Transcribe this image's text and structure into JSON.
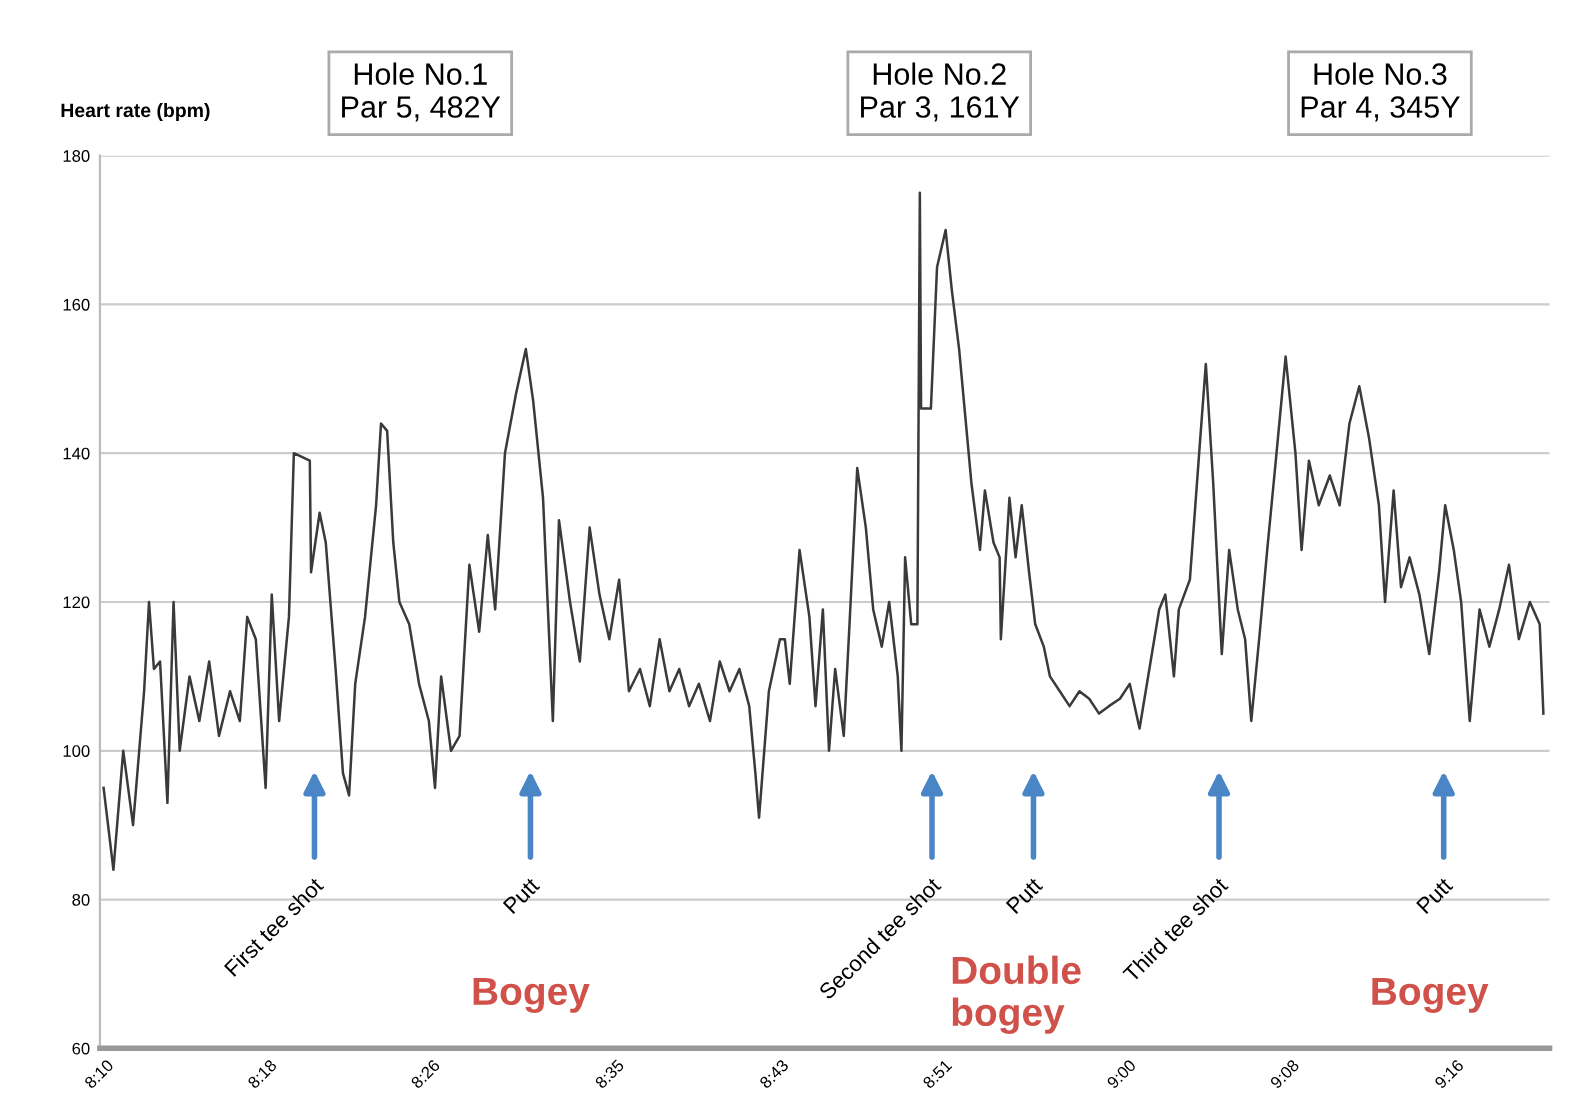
{
  "chart_data": {
    "type": "line",
    "ylabel": "Heart rate (bpm)",
    "xlim": [
      8.167,
      9.348
    ],
    "ylim": [
      60,
      180
    ],
    "yticks": [
      60,
      80,
      100,
      120,
      140,
      160,
      180
    ],
    "xticks": [
      {
        "value": 8.167,
        "label": "8:10"
      },
      {
        "value": 8.3,
        "label": "8:18"
      },
      {
        "value": 8.433,
        "label": "8:26"
      },
      {
        "value": 8.583,
        "label": "8:35"
      },
      {
        "value": 8.717,
        "label": "8:43"
      },
      {
        "value": 8.85,
        "label": "8:51"
      },
      {
        "value": 9.0,
        "label": "9:00"
      },
      {
        "value": 9.133,
        "label": "9:08"
      },
      {
        "value": 9.267,
        "label": "9:16"
      }
    ],
    "grid": "y",
    "marker": "none",
    "line_style": "solid",
    "series": [
      {
        "color": "#3a3a3a",
        "x": [
          8.17,
          8.178,
          8.186,
          8.194,
          8.203,
          8.207,
          8.211,
          8.216,
          8.222,
          8.227,
          8.232,
          8.24,
          8.248,
          8.256,
          8.264,
          8.273,
          8.281,
          8.287,
          8.294,
          8.302,
          8.307,
          8.313,
          8.321,
          8.325,
          8.338,
          8.339,
          8.346,
          8.351,
          8.359,
          8.365,
          8.37,
          8.375,
          8.383,
          8.392,
          8.396,
          8.401,
          8.406,
          8.411,
          8.419,
          8.427,
          8.435,
          8.44,
          8.445,
          8.453,
          8.46,
          8.468,
          8.476,
          8.483,
          8.489,
          8.497,
          8.506,
          8.514,
          8.52,
          8.528,
          8.536,
          8.541,
          8.55,
          8.558,
          8.566,
          8.574,
          8.582,
          8.59,
          8.598,
          8.607,
          8.615,
          8.623,
          8.631,
          8.639,
          8.647,
          8.655,
          8.664,
          8.672,
          8.68,
          8.688,
          8.696,
          8.701,
          8.704,
          8.712,
          8.721,
          8.725,
          8.729,
          8.737,
          8.745,
          8.75,
          8.756,
          8.761,
          8.766,
          8.773,
          8.778,
          8.784,
          8.791,
          8.797,
          8.804,
          8.81,
          8.817,
          8.82,
          8.823,
          8.828,
          8.833,
          8.835,
          8.836,
          8.844,
          8.849,
          8.856,
          8.861,
          8.867,
          8.872,
          8.877,
          8.884,
          8.888,
          8.895,
          8.9,
          8.901,
          8.908,
          8.913,
          8.918,
          8.924,
          8.929,
          8.936,
          8.941,
          8.949,
          8.957,
          8.965,
          8.973,
          8.981,
          8.989,
          8.998,
          9.006,
          9.014,
          9.022,
          9.03,
          9.035,
          9.042,
          9.046,
          9.055,
          9.063,
          9.068,
          9.074,
          9.081,
          9.087,
          9.094,
          9.1,
          9.105,
          9.112,
          9.118,
          9.125,
          9.133,
          9.141,
          9.146,
          9.152,
          9.16,
          9.169,
          9.177,
          9.185,
          9.193,
          9.201,
          9.209,
          9.214,
          9.221,
          9.227,
          9.234,
          9.242,
          9.25,
          9.258,
          9.263,
          9.27,
          9.276,
          9.283,
          9.291,
          9.299,
          9.307,
          9.315,
          9.323,
          9.332,
          9.34,
          9.343
        ],
        "values": [
          95,
          84,
          100,
          90,
          108,
          120,
          111,
          112,
          93,
          120,
          100,
          110,
          104,
          112,
          102,
          108,
          104,
          118,
          115,
          95,
          121,
          104,
          118,
          140,
          139,
          124,
          132,
          128,
          111,
          97,
          94,
          109,
          118,
          133,
          144,
          143,
          128,
          120,
          117,
          109,
          104,
          95,
          110,
          100,
          102,
          125,
          116,
          129,
          119,
          140,
          148,
          154,
          147,
          134,
          104,
          131,
          120,
          112,
          130,
          121,
          115,
          123,
          108,
          111,
          106,
          115,
          108,
          111,
          106,
          109,
          104,
          112,
          108,
          111,
          106,
          97,
          91,
          108,
          115,
          115,
          109,
          127,
          118,
          106,
          119,
          100,
          111,
          102,
          118,
          138,
          130,
          119,
          114,
          120,
          110,
          100,
          126,
          117,
          117,
          175,
          146,
          146,
          165,
          170,
          162,
          154,
          145,
          136,
          127,
          135,
          128,
          126,
          115,
          134,
          126,
          133,
          124,
          117,
          114,
          110,
          108,
          106,
          108,
          107,
          105,
          106,
          107,
          109,
          103,
          111,
          119,
          121,
          110,
          119,
          123,
          141,
          152,
          136,
          113,
          127,
          119,
          115,
          104,
          116,
          127,
          139,
          153,
          140,
          127,
          139,
          133,
          137,
          133,
          144,
          149,
          142,
          133,
          120,
          135,
          122,
          126,
          121,
          113,
          124,
          133,
          127,
          120,
          104,
          119,
          114,
          119,
          125,
          115,
          120,
          117,
          105
        ]
      }
    ],
    "annotations": [
      "Hole No.1\nPar 5, 482Y",
      "Hole No.2\nPar 3, 161Y",
      "Hole No.3\nPar 4, 345Y",
      "First tee shot",
      "Putt",
      "Second tee shot",
      "Putt",
      "Third tee shot",
      "Putt",
      "Bogey",
      "Double\nbogey",
      "Bogey"
    ]
  }
}
